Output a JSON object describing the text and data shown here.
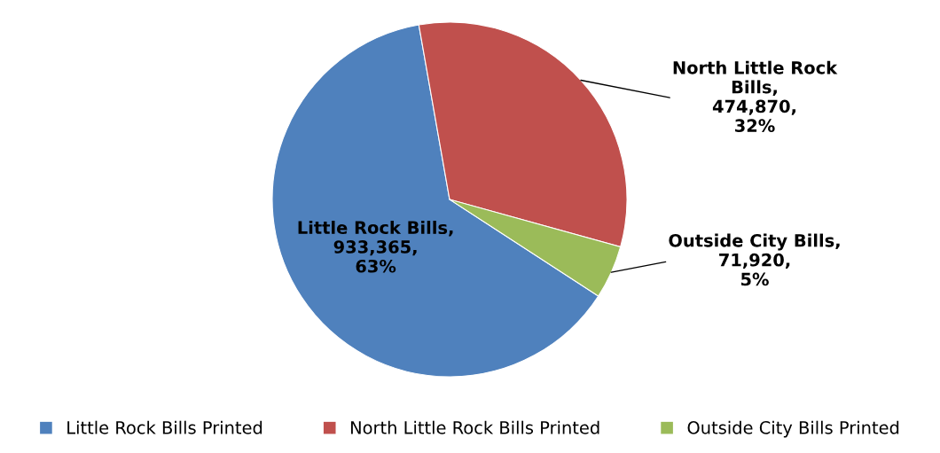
{
  "chart_data": {
    "type": "pie",
    "categories": [
      "Little Rock Bills Printed",
      "North Little Rock Bills Printed",
      "Outside City Bills Printed"
    ],
    "values": [
      933365,
      474870,
      71920
    ],
    "colors": [
      "#4f81bd",
      "#c0504d",
      "#9bbb59"
    ],
    "value_labels": [
      "Little Rock Bills,\n933,365,\n63%",
      "North Little Rock\nBills,\n474,870,\n32%",
      "Outside City Bills,\n71,920,\n5%"
    ],
    "legend": "bottom"
  }
}
